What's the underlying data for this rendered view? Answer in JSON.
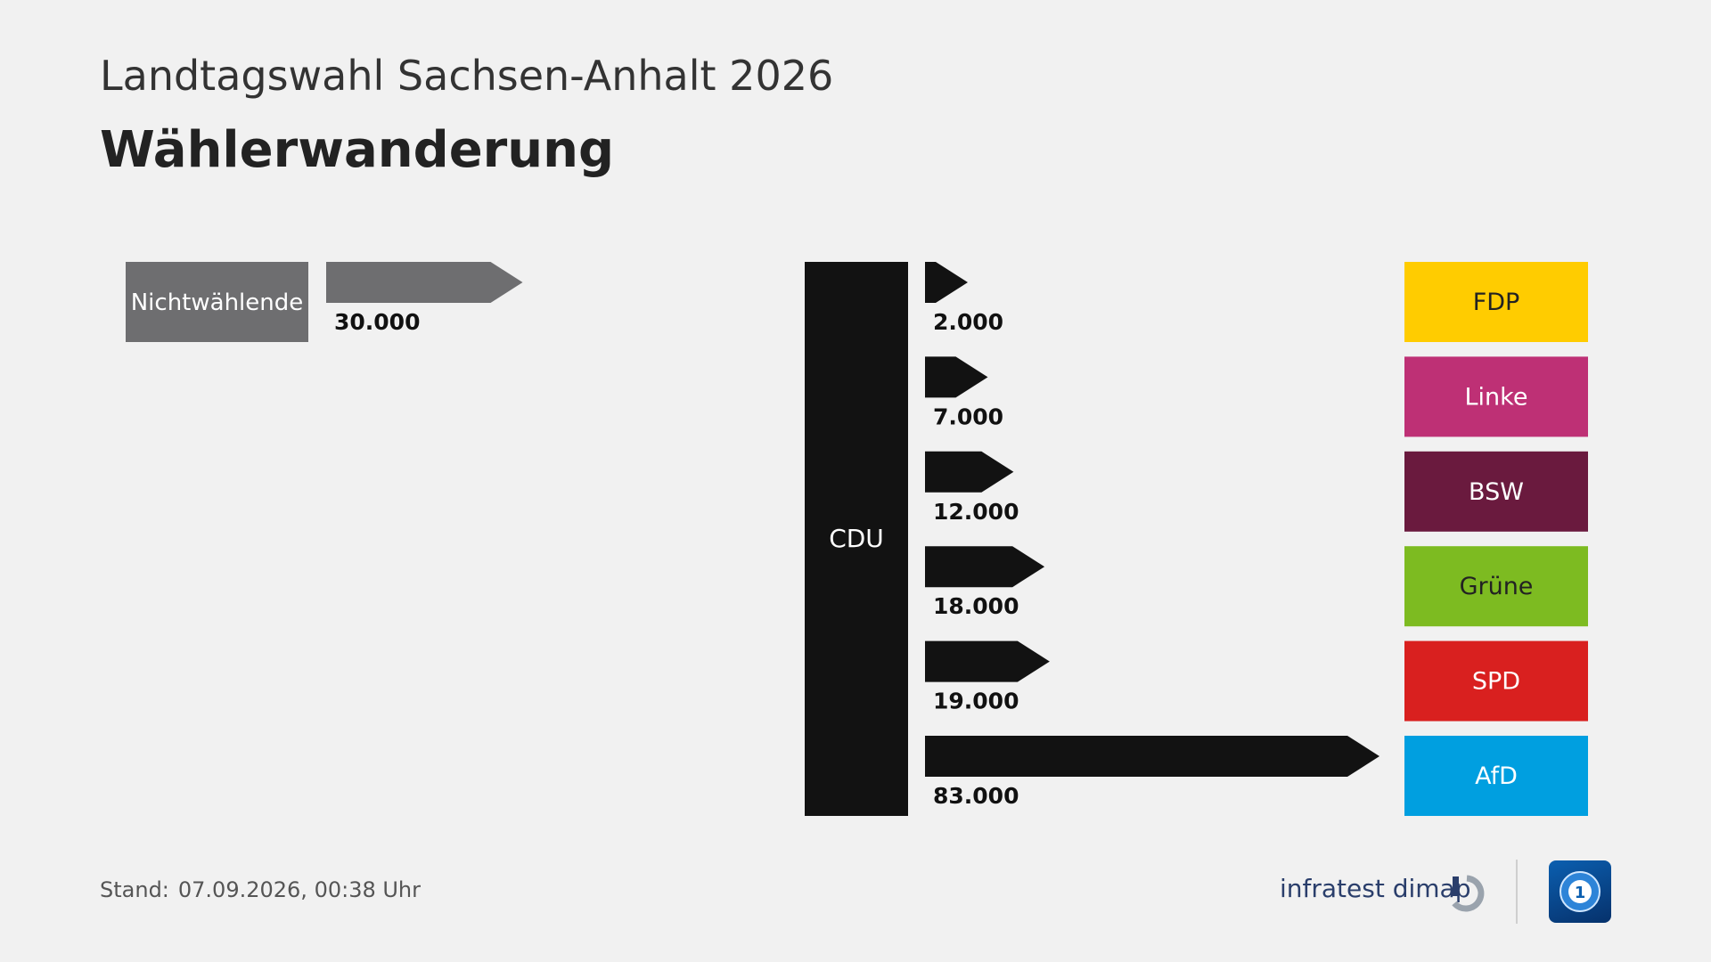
{
  "header": {
    "subtitle": "Landtagswahl Sachsen-Anhalt 2026",
    "title": "Wählerwanderung"
  },
  "chart_data": [
    {
      "type": "bar",
      "source": {
        "label": "Nichtwählende",
        "color": "#6e6e70"
      },
      "target": {
        "label": "CDU"
      },
      "values": [
        30000
      ],
      "value_labels": [
        "30.000"
      ],
      "arrow_color": "#6e6e70"
    },
    {
      "type": "bar",
      "source": {
        "label": "CDU",
        "color": "#121212"
      },
      "categories": [
        "FDP",
        "Linke",
        "BSW",
        "Grüne",
        "SPD",
        "AfD"
      ],
      "values": [
        2000,
        7000,
        12000,
        18000,
        19000,
        83000
      ],
      "value_labels": [
        "2.000",
        "7.000",
        "12.000",
        "18.000",
        "19.000",
        "83.000"
      ],
      "colors": [
        "#ffcc00",
        "#be3075",
        "#6a1a3e",
        "#7dbb21",
        "#d9201f",
        "#009fe0"
      ],
      "label_text_colors": [
        "#222222",
        "#ffffff",
        "#ffffff",
        "#222222",
        "#ffffff",
        "#ffffff"
      ],
      "arrow_color": "#121212"
    }
  ],
  "footer": {
    "stand_label": "Stand:",
    "stand_value": "07.09.2026, 00:38 Uhr",
    "brand": "infratest dimap"
  }
}
